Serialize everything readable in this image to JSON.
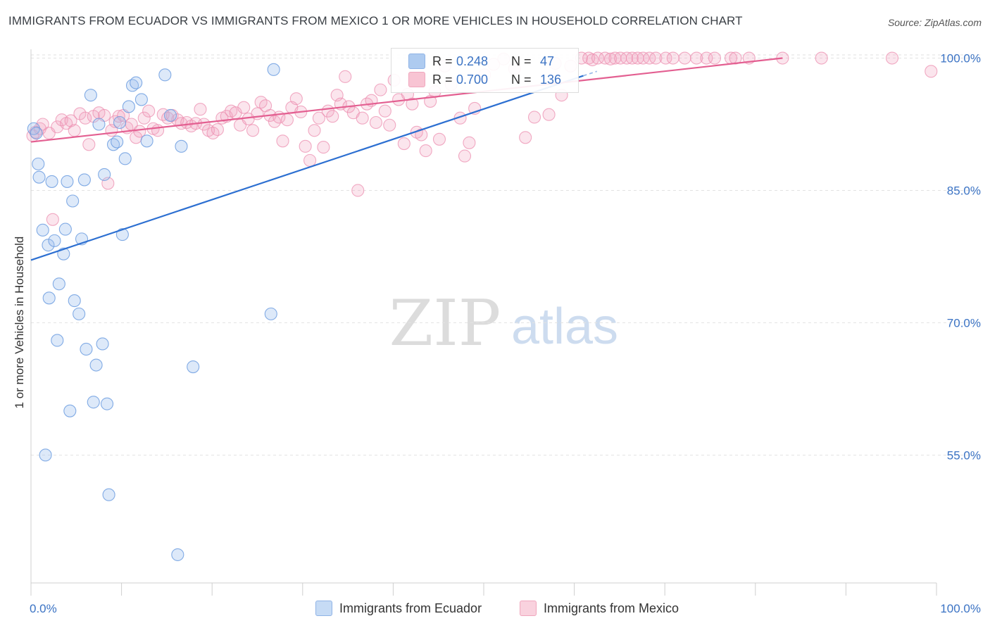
{
  "title": "IMMIGRANTS FROM ECUADOR VS IMMIGRANTS FROM MEXICO 1 OR MORE VEHICLES IN HOUSEHOLD CORRELATION CHART",
  "source": "Source: ZipAtlas.com",
  "watermark": {
    "zip": "ZIP",
    "atlas": "atlas"
  },
  "legend": {
    "r_label": "R =",
    "n_label": "N =",
    "series": [
      {
        "name": "Immigrants from Ecuador",
        "r": "0.248",
        "n": "47",
        "color": "#3b7dd8"
      },
      {
        "name": "Immigrants from Mexico",
        "r": "0.700",
        "n": "136",
        "color": "#e66a98"
      }
    ]
  },
  "chart_data": {
    "type": "scatter",
    "title": "IMMIGRANTS FROM ECUADOR VS IMMIGRANTS FROM MEXICO 1 OR MORE VEHICLES IN HOUSEHOLD CORRELATION CHART",
    "xlabel": "",
    "ylabel": "1 or more Vehicles in Household",
    "xlim": [
      0,
      100
    ],
    "ylim": [
      40.5,
      101.0
    ],
    "x_tick_labels": [
      "0.0%",
      "100.0%"
    ],
    "y_ticks": [
      55,
      70,
      85,
      100
    ],
    "y_tick_labels": [
      "55.0%",
      "70.0%",
      "85.0%",
      "100.0%"
    ],
    "grid": true,
    "series": [
      {
        "name": "Immigrants from Ecuador",
        "color": "#6d9ee0",
        "trend": {
          "x": [
            0,
            61
          ],
          "y": [
            77.1,
            98.0
          ],
          "dashed_to": [
            62.5,
            98.5
          ]
        },
        "points": [
          [
            0.3,
            92
          ],
          [
            0.6,
            91.5
          ],
          [
            0.8,
            88
          ],
          [
            0.9,
            86.5
          ],
          [
            1.3,
            80.5
          ],
          [
            1.6,
            55
          ],
          [
            1.9,
            78.8
          ],
          [
            2.0,
            72.8
          ],
          [
            2.3,
            86
          ],
          [
            2.6,
            79.3
          ],
          [
            2.9,
            68
          ],
          [
            3.1,
            74.4
          ],
          [
            3.6,
            77.8
          ],
          [
            3.8,
            80.6
          ],
          [
            4.0,
            86
          ],
          [
            4.3,
            60
          ],
          [
            4.6,
            83.8
          ],
          [
            4.8,
            72.5
          ],
          [
            5.3,
            71
          ],
          [
            5.6,
            79.5
          ],
          [
            5.9,
            86.2
          ],
          [
            6.1,
            67
          ],
          [
            6.6,
            95.8
          ],
          [
            6.9,
            61
          ],
          [
            7.2,
            65.2
          ],
          [
            7.5,
            92.5
          ],
          [
            7.9,
            67.6
          ],
          [
            8.1,
            86.8
          ],
          [
            8.4,
            60.8
          ],
          [
            8.6,
            50.5
          ],
          [
            9.1,
            90.2
          ],
          [
            9.5,
            90.5
          ],
          [
            9.8,
            92.7
          ],
          [
            10.1,
            80
          ],
          [
            10.4,
            88.6
          ],
          [
            10.8,
            94.5
          ],
          [
            11.2,
            96.9
          ],
          [
            11.6,
            97.2
          ],
          [
            12.2,
            95.3
          ],
          [
            12.8,
            90.6
          ],
          [
            14.8,
            98.1
          ],
          [
            15.4,
            93.5
          ],
          [
            16.2,
            43.7
          ],
          [
            16.6,
            90
          ],
          [
            17.9,
            65
          ],
          [
            26.5,
            71
          ],
          [
            26.8,
            98.7
          ]
        ]
      },
      {
        "name": "Immigrants from Mexico",
        "color": "#ec8fb0",
        "trend": {
          "x": [
            0,
            83
          ],
          "y": [
            90.5,
            100.0
          ]
        },
        "points": [
          [
            0.2,
            91.2
          ],
          [
            0.5,
            91.6
          ],
          [
            1.0,
            92
          ],
          [
            1.3,
            92.5
          ],
          [
            2.0,
            91.5
          ],
          [
            2.4,
            81.7
          ],
          [
            2.9,
            92.2
          ],
          [
            3.4,
            93
          ],
          [
            3.9,
            92.6
          ],
          [
            4.4,
            92.9
          ],
          [
            4.8,
            91.8
          ],
          [
            5.4,
            93.7
          ],
          [
            6.0,
            93.2
          ],
          [
            6.4,
            90.2
          ],
          [
            6.9,
            93.4
          ],
          [
            7.5,
            93.8
          ],
          [
            8.1,
            93.5
          ],
          [
            8.5,
            85.8
          ],
          [
            8.9,
            91.8
          ],
          [
            9.3,
            92.8
          ],
          [
            9.7,
            93.4
          ],
          [
            10.2,
            93.5
          ],
          [
            10.6,
            92.1
          ],
          [
            11.1,
            92.5
          ],
          [
            11.6,
            91
          ],
          [
            12.0,
            91.7
          ],
          [
            12.5,
            93.2
          ],
          [
            13.0,
            94
          ],
          [
            13.5,
            92
          ],
          [
            14.0,
            91.8
          ],
          [
            14.6,
            93.6
          ],
          [
            15.1,
            93.2
          ],
          [
            15.6,
            93.5
          ],
          [
            16.2,
            93
          ],
          [
            16.6,
            92.6
          ],
          [
            17.2,
            92.7
          ],
          [
            17.7,
            92.3
          ],
          [
            18.2,
            92.6
          ],
          [
            18.7,
            94.2
          ],
          [
            19.1,
            92.5
          ],
          [
            19.6,
            91.8
          ],
          [
            20.1,
            91.5
          ],
          [
            20.6,
            91.9
          ],
          [
            21.1,
            93.2
          ],
          [
            21.6,
            93.4
          ],
          [
            22.1,
            94
          ],
          [
            22.6,
            93.8
          ],
          [
            23.1,
            92.4
          ],
          [
            23.5,
            94.4
          ],
          [
            24.0,
            93.1
          ],
          [
            24.5,
            91.8
          ],
          [
            25.0,
            93.7
          ],
          [
            25.4,
            95
          ],
          [
            25.9,
            94.6
          ],
          [
            26.4,
            93.5
          ],
          [
            26.9,
            92.8
          ],
          [
            27.4,
            93.3
          ],
          [
            27.8,
            90.6
          ],
          [
            28.3,
            93
          ],
          [
            28.8,
            94.4
          ],
          [
            29.3,
            95.4
          ],
          [
            29.8,
            93.9
          ],
          [
            30.3,
            90
          ],
          [
            30.8,
            88.4
          ],
          [
            31.3,
            91.8
          ],
          [
            31.8,
            93.2
          ],
          [
            32.3,
            89.9
          ],
          [
            32.8,
            94
          ],
          [
            33.3,
            93.4
          ],
          [
            33.8,
            95.8
          ],
          [
            34.2,
            94.8
          ],
          [
            34.7,
            97.9
          ],
          [
            35.1,
            94.5
          ],
          [
            35.6,
            93.8
          ],
          [
            36.1,
            85
          ],
          [
            36.6,
            93.2
          ],
          [
            37.1,
            94.8
          ],
          [
            37.6,
            95.2
          ],
          [
            38.1,
            92.7
          ],
          [
            38.6,
            96.4
          ],
          [
            39.1,
            94
          ],
          [
            39.6,
            92.4
          ],
          [
            40.1,
            97.5
          ],
          [
            40.6,
            95.3
          ],
          [
            41.2,
            90.3
          ],
          [
            41.6,
            95.9
          ],
          [
            42.1,
            94.8
          ],
          [
            42.6,
            91.6
          ],
          [
            43.1,
            91.3
          ],
          [
            43.6,
            89.5
          ],
          [
            44.1,
            95.1
          ],
          [
            44.6,
            96.2
          ],
          [
            45.1,
            90.8
          ],
          [
            45.7,
            99.1
          ],
          [
            46.4,
            97
          ],
          [
            47.4,
            93.2
          ],
          [
            47.9,
            88.9
          ],
          [
            48.4,
            90.4
          ],
          [
            49.0,
            94.3
          ],
          [
            50.1,
            98.1
          ],
          [
            51.1,
            99.3
          ],
          [
            52.2,
            99.9
          ],
          [
            53.4,
            98.8
          ],
          [
            54.6,
            91
          ],
          [
            55.6,
            93.3
          ],
          [
            57.2,
            93.6
          ],
          [
            57.9,
            99.4
          ],
          [
            58.6,
            95.8
          ],
          [
            59.6,
            99.1
          ],
          [
            60.8,
            100
          ],
          [
            61.6,
            100
          ],
          [
            62.0,
            99.8
          ],
          [
            62.6,
            100
          ],
          [
            63.4,
            100
          ],
          [
            64.0,
            99.9
          ],
          [
            64.5,
            100
          ],
          [
            65.1,
            100
          ],
          [
            65.8,
            100
          ],
          [
            66.4,
            100
          ],
          [
            67.0,
            100
          ],
          [
            67.6,
            100
          ],
          [
            68.3,
            100
          ],
          [
            69.0,
            100
          ],
          [
            70.1,
            100
          ],
          [
            70.9,
            100
          ],
          [
            72.2,
            100
          ],
          [
            73.5,
            100
          ],
          [
            74.6,
            100
          ],
          [
            75.5,
            100
          ],
          [
            77.3,
            100
          ],
          [
            77.8,
            100
          ],
          [
            79.3,
            100
          ],
          [
            83.0,
            100
          ],
          [
            87.3,
            100
          ],
          [
            95.1,
            100
          ],
          [
            99.4,
            98.5
          ]
        ]
      }
    ]
  }
}
